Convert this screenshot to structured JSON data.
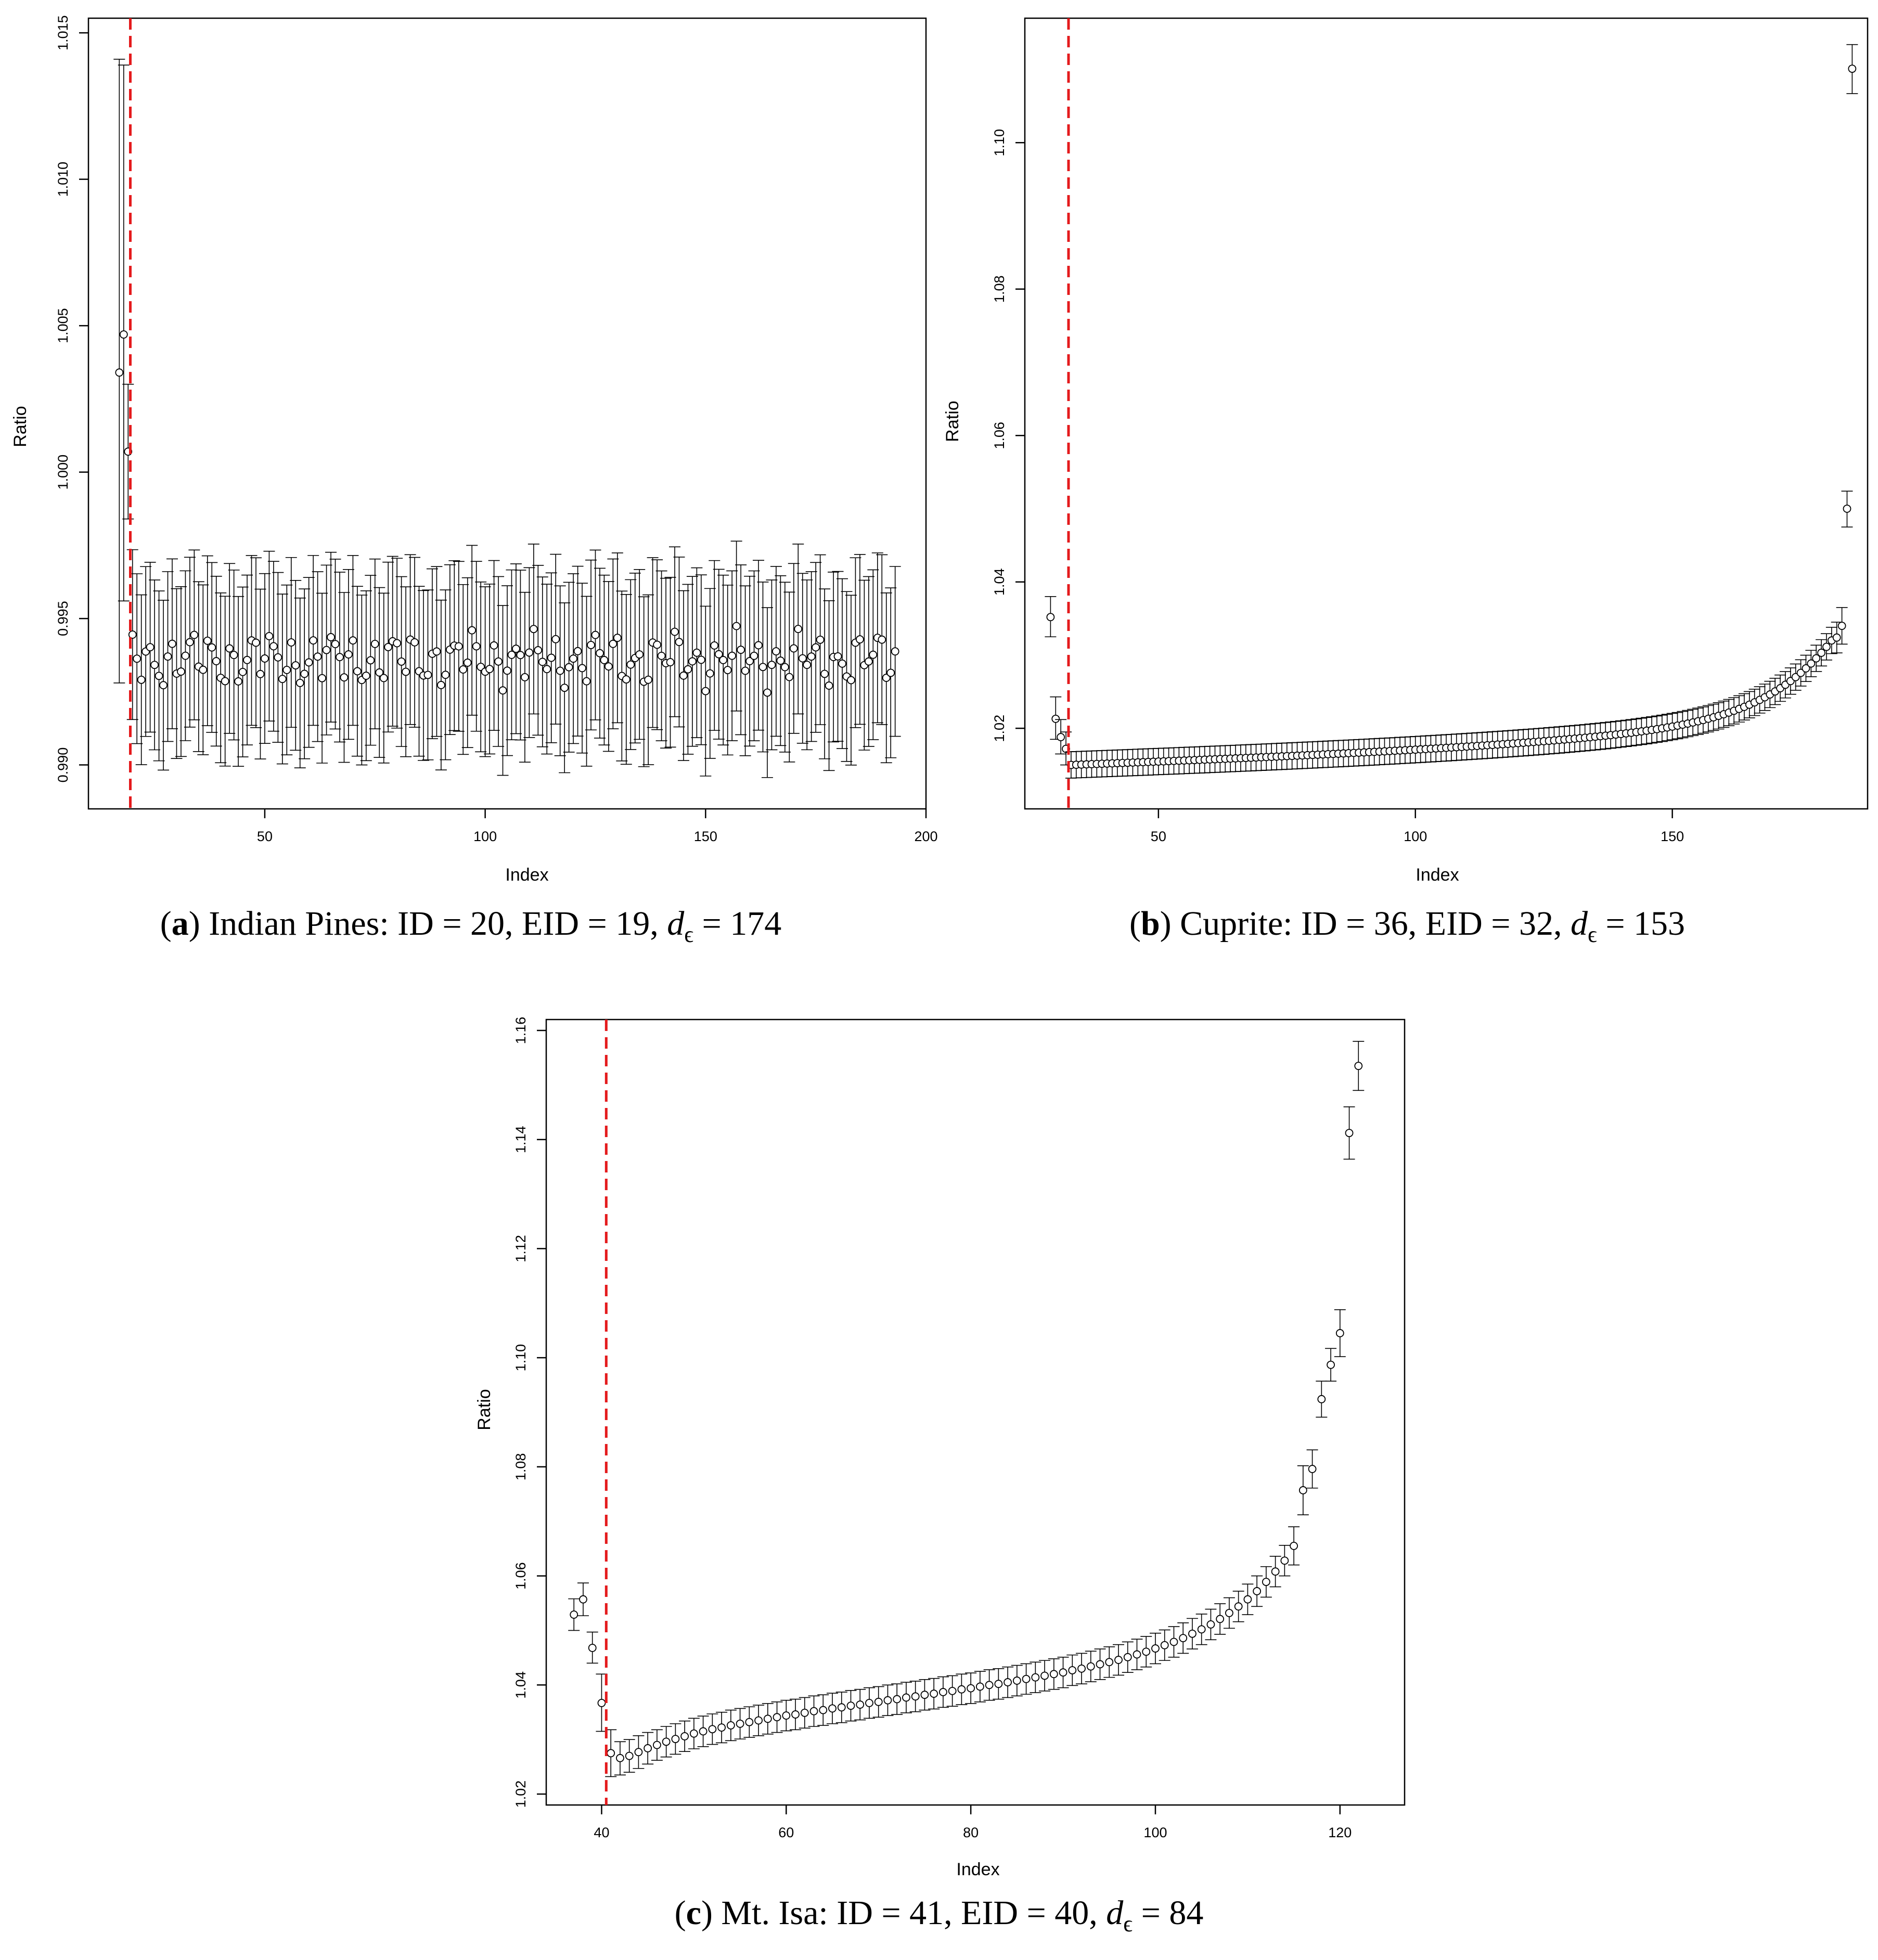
{
  "chart_data": [
    {
      "type": "scatter",
      "panel_letter": "a",
      "caption_text": "Indian Pines: ID = 20, EID = 19, ",
      "caption_sym": "d",
      "caption_sub": "ϵ",
      "caption_tail": " = 174",
      "xlabel": "Index",
      "ylabel": "Ratio",
      "xlim": [
        10,
        200
      ],
      "ylim": [
        0.9885,
        1.0155
      ],
      "xticks": [
        50,
        100,
        150,
        200
      ],
      "yticks": [
        0.99,
        0.995,
        1.0,
        1.005,
        1.01,
        1.015
      ],
      "ytick_labels": [
        "0.990",
        "0.995",
        "1.000",
        "1.005",
        "1.010",
        "1.015"
      ],
      "reference_x": 19.5,
      "grid": false,
      "points": [
        {
          "x": 17,
          "y": 1.0034,
          "lo": 0.9928,
          "hi": 1.0141
        },
        {
          "x": 18,
          "y": 1.0047,
          "lo": 0.9956,
          "hi": 1.0139
        },
        {
          "x": 19,
          "y": 1.0007,
          "lo": 0.9984,
          "hi": 1.003
        }
      ],
      "series_params": {
        "start": 20,
        "end": 193,
        "base": 0.9936,
        "amp": 0.0006,
        "err": 0.0029
      }
    },
    {
      "type": "scatter",
      "panel_letter": "b",
      "caption_text": "Cuprite: ID = 36, EID = 32, ",
      "caption_sym": "d",
      "caption_sub": "ϵ",
      "caption_tail": " = 153",
      "xlabel": "Index",
      "ylabel": "Ratio",
      "xlim": [
        24,
        188
      ],
      "ylim": [
        1.009,
        1.117
      ],
      "xticks": [
        50,
        100,
        150
      ],
      "yticks": [
        1.02,
        1.04,
        1.06,
        1.08,
        1.1
      ],
      "ytick_labels": [
        "1.02",
        "1.04",
        "1.06",
        "1.08",
        "1.10"
      ],
      "reference_x": 32.5,
      "grid": false,
      "points": [
        {
          "x": 29,
          "y": 1.0352,
          "lo": 1.0325,
          "hi": 1.038
        },
        {
          "x": 30,
          "y": 1.0213,
          "lo": 1.0185,
          "hi": 1.0243
        },
        {
          "x": 31,
          "y": 1.0188,
          "lo": 1.0165,
          "hi": 1.0212
        },
        {
          "x": 32,
          "y": 1.0172,
          "lo": 1.015,
          "hi": 1.0195
        },
        {
          "x": 182,
          "y": 1.0324,
          "lo": 1.0303,
          "hi": 1.0345
        },
        {
          "x": 183,
          "y": 1.034,
          "lo": 1.0315,
          "hi": 1.0365
        },
        {
          "x": 184,
          "y": 1.05,
          "lo": 1.0475,
          "hi": 1.0524
        },
        {
          "x": 185,
          "y": 1.1101,
          "lo": 1.1067,
          "hi": 1.1134
        }
      ],
      "series_params": {
        "start": 33,
        "end": 181,
        "base": 1.015,
        "err": 0.0018
      }
    },
    {
      "type": "scatter",
      "panel_letter": "c",
      "caption_text": "Mt. Isa: ID = 41, EID = 40, ",
      "caption_sym": "d",
      "caption_sub": "ϵ",
      "caption_tail": " = 84",
      "xlabel": "Index",
      "ylabel": "Ratio",
      "xlim": [
        34,
        127
      ],
      "ylim": [
        1.018,
        1.162
      ],
      "xticks": [
        40,
        60,
        80,
        100,
        120
      ],
      "yticks": [
        1.02,
        1.04,
        1.06,
        1.08,
        1.1,
        1.12,
        1.14,
        1.16
      ],
      "ytick_labels": [
        "1.02",
        "1.04",
        "1.06",
        "1.08",
        "1.10",
        "1.12",
        "1.14",
        "1.16"
      ],
      "reference_x": 40.5,
      "grid": false,
      "points": [
        {
          "x": 37,
          "y": 1.0529,
          "lo": 1.05,
          "hi": 1.0558
        },
        {
          "x": 38,
          "y": 1.0557,
          "lo": 1.0527,
          "hi": 1.0587
        },
        {
          "x": 39,
          "y": 1.0468,
          "lo": 1.044,
          "hi": 1.0497
        },
        {
          "x": 40,
          "y": 1.0367,
          "lo": 1.0315,
          "hi": 1.042
        },
        {
          "x": 41,
          "y": 1.0275,
          "lo": 1.0232,
          "hi": 1.0318
        },
        {
          "x": 42,
          "y": 1.0266,
          "lo": 1.0235,
          "hi": 1.0296
        },
        {
          "x": 43,
          "y": 1.027,
          "lo": 1.024,
          "hi": 1.03
        },
        {
          "x": 44,
          "y": 1.0277,
          "lo": 1.0247,
          "hi": 1.0307
        },
        {
          "x": 45,
          "y": 1.0284,
          "lo": 1.0255,
          "hi": 1.0313
        },
        {
          "x": 46,
          "y": 1.029,
          "lo": 1.0262,
          "hi": 1.0318
        },
        {
          "x": 47,
          "y": 1.0296,
          "lo": 1.0268,
          "hi": 1.0324
        },
        {
          "x": 48,
          "y": 1.0301,
          "lo": 1.0273,
          "hi": 1.0329
        },
        {
          "x": 49,
          "y": 1.0306,
          "lo": 1.0278,
          "hi": 1.0334
        },
        {
          "x": 50,
          "y": 1.0311,
          "lo": 1.0283,
          "hi": 1.0339
        },
        {
          "x": 51,
          "y": 1.0315,
          "lo": 1.0287,
          "hi": 1.0343
        },
        {
          "x": 52,
          "y": 1.0319,
          "lo": 1.0291,
          "hi": 1.0347
        },
        {
          "x": 53,
          "y": 1.0322,
          "lo": 1.0294,
          "hi": 1.035
        },
        {
          "x": 54,
          "y": 1.0326,
          "lo": 1.0298,
          "hi": 1.0354
        },
        {
          "x": 55,
          "y": 1.0329,
          "lo": 1.0301,
          "hi": 1.0357
        },
        {
          "x": 56,
          "y": 1.0332,
          "lo": 1.0304,
          "hi": 1.036
        },
        {
          "x": 57,
          "y": 1.0335,
          "lo": 1.0307,
          "hi": 1.0363
        },
        {
          "x": 58,
          "y": 1.0338,
          "lo": 1.031,
          "hi": 1.0366
        },
        {
          "x": 59,
          "y": 1.0341,
          "lo": 1.0313,
          "hi": 1.0369
        },
        {
          "x": 60,
          "y": 1.0344,
          "lo": 1.0316,
          "hi": 1.0372
        },
        {
          "x": 61,
          "y": 1.0346,
          "lo": 1.0318,
          "hi": 1.0374
        },
        {
          "x": 62,
          "y": 1.0349,
          "lo": 1.0321,
          "hi": 1.0377
        },
        {
          "x": 63,
          "y": 1.0352,
          "lo": 1.0324,
          "hi": 1.038
        },
        {
          "x": 64,
          "y": 1.0354,
          "lo": 1.0326,
          "hi": 1.0382
        },
        {
          "x": 65,
          "y": 1.0357,
          "lo": 1.0329,
          "hi": 1.0385
        },
        {
          "x": 66,
          "y": 1.0359,
          "lo": 1.0331,
          "hi": 1.0387
        },
        {
          "x": 67,
          "y": 1.0362,
          "lo": 1.0334,
          "hi": 1.039
        },
        {
          "x": 68,
          "y": 1.0364,
          "lo": 1.0336,
          "hi": 1.0392
        },
        {
          "x": 69,
          "y": 1.0367,
          "lo": 1.0339,
          "hi": 1.0395
        },
        {
          "x": 70,
          "y": 1.0369,
          "lo": 1.0341,
          "hi": 1.0397
        },
        {
          "x": 71,
          "y": 1.0372,
          "lo": 1.0344,
          "hi": 1.04
        },
        {
          "x": 72,
          "y": 1.0374,
          "lo": 1.0346,
          "hi": 1.0402
        },
        {
          "x": 73,
          "y": 1.0377,
          "lo": 1.0349,
          "hi": 1.0405
        },
        {
          "x": 74,
          "y": 1.0379,
          "lo": 1.0351,
          "hi": 1.0407
        },
        {
          "x": 75,
          "y": 1.0382,
          "lo": 1.0354,
          "hi": 1.041
        },
        {
          "x": 76,
          "y": 1.0384,
          "lo": 1.0356,
          "hi": 1.0412
        },
        {
          "x": 77,
          "y": 1.0387,
          "lo": 1.0359,
          "hi": 1.0415
        },
        {
          "x": 78,
          "y": 1.0389,
          "lo": 1.0361,
          "hi": 1.0417
        },
        {
          "x": 79,
          "y": 1.0392,
          "lo": 1.0364,
          "hi": 1.042
        },
        {
          "x": 80,
          "y": 1.0394,
          "lo": 1.0366,
          "hi": 1.0422
        },
        {
          "x": 81,
          "y": 1.0397,
          "lo": 1.0369,
          "hi": 1.0425
        },
        {
          "x": 82,
          "y": 1.04,
          "lo": 1.0372,
          "hi": 1.0428
        },
        {
          "x": 83,
          "y": 1.0402,
          "lo": 1.0374,
          "hi": 1.043
        },
        {
          "x": 84,
          "y": 1.0405,
          "lo": 1.0377,
          "hi": 1.0433
        },
        {
          "x": 85,
          "y": 1.0408,
          "lo": 1.038,
          "hi": 1.0436
        },
        {
          "x": 86,
          "y": 1.0411,
          "lo": 1.0383,
          "hi": 1.0439
        },
        {
          "x": 87,
          "y": 1.0414,
          "lo": 1.0386,
          "hi": 1.0442
        },
        {
          "x": 88,
          "y": 1.0417,
          "lo": 1.0389,
          "hi": 1.0445
        },
        {
          "x": 89,
          "y": 1.042,
          "lo": 1.0392,
          "hi": 1.0448
        },
        {
          "x": 90,
          "y": 1.0423,
          "lo": 1.0395,
          "hi": 1.0451
        },
        {
          "x": 91,
          "y": 1.0427,
          "lo": 1.0399,
          "hi": 1.0455
        },
        {
          "x": 92,
          "y": 1.043,
          "lo": 1.0402,
          "hi": 1.0458
        },
        {
          "x": 93,
          "y": 1.0434,
          "lo": 1.0406,
          "hi": 1.0462
        },
        {
          "x": 94,
          "y": 1.0438,
          "lo": 1.041,
          "hi": 1.0466
        },
        {
          "x": 95,
          "y": 1.0442,
          "lo": 1.0414,
          "hi": 1.047
        },
        {
          "x": 96,
          "y": 1.0446,
          "lo": 1.0418,
          "hi": 1.0474
        },
        {
          "x": 97,
          "y": 1.0451,
          "lo": 1.0423,
          "hi": 1.0479
        },
        {
          "x": 98,
          "y": 1.0456,
          "lo": 1.0428,
          "hi": 1.0484
        },
        {
          "x": 99,
          "y": 1.0461,
          "lo": 1.0433,
          "hi": 1.0489
        },
        {
          "x": 100,
          "y": 1.0467,
          "lo": 1.0439,
          "hi": 1.0495
        },
        {
          "x": 101,
          "y": 1.0473,
          "lo": 1.0445,
          "hi": 1.0501
        },
        {
          "x": 102,
          "y": 1.0479,
          "lo": 1.0451,
          "hi": 1.0507
        },
        {
          "x": 103,
          "y": 1.0486,
          "lo": 1.0458,
          "hi": 1.0514
        },
        {
          "x": 104,
          "y": 1.0494,
          "lo": 1.0466,
          "hi": 1.0522
        },
        {
          "x": 105,
          "y": 1.0502,
          "lo": 1.0474,
          "hi": 1.053
        },
        {
          "x": 106,
          "y": 1.0511,
          "lo": 1.0483,
          "hi": 1.0539
        },
        {
          "x": 107,
          "y": 1.0521,
          "lo": 1.0493,
          "hi": 1.0549
        },
        {
          "x": 108,
          "y": 1.0532,
          "lo": 1.0504,
          "hi": 1.056
        },
        {
          "x": 109,
          "y": 1.0544,
          "lo": 1.0516,
          "hi": 1.0572
        },
        {
          "x": 110,
          "y": 1.0557,
          "lo": 1.0529,
          "hi": 1.0585
        },
        {
          "x": 111,
          "y": 1.0572,
          "lo": 1.0544,
          "hi": 1.06
        },
        {
          "x": 112,
          "y": 1.0589,
          "lo": 1.0561,
          "hi": 1.0617
        },
        {
          "x": 113,
          "y": 1.0608,
          "lo": 1.058,
          "hi": 1.0636
        },
        {
          "x": 114,
          "y": 1.0628,
          "lo": 1.06,
          "hi": 1.0656
        },
        {
          "x": 115,
          "y": 1.0655,
          "lo": 1.062,
          "hi": 1.069
        },
        {
          "x": 116,
          "y": 1.0757,
          "lo": 1.0712,
          "hi": 1.0802
        },
        {
          "x": 117,
          "y": 1.0796,
          "lo": 1.0761,
          "hi": 1.0831
        },
        {
          "x": 118,
          "y": 1.0924,
          "lo": 1.0891,
          "hi": 1.0957
        },
        {
          "x": 119,
          "y": 1.0987,
          "lo": 1.0957,
          "hi": 1.1017
        },
        {
          "x": 120,
          "y": 1.1045,
          "lo": 1.1002,
          "hi": 1.1088
        },
        {
          "x": 121,
          "y": 1.1412,
          "lo": 1.1364,
          "hi": 1.146
        },
        {
          "x": 122,
          "y": 1.1535,
          "lo": 1.149,
          "hi": 1.158
        }
      ]
    }
  ],
  "colors": {
    "reference_line": "#e41a1c",
    "marks": "#000000"
  }
}
